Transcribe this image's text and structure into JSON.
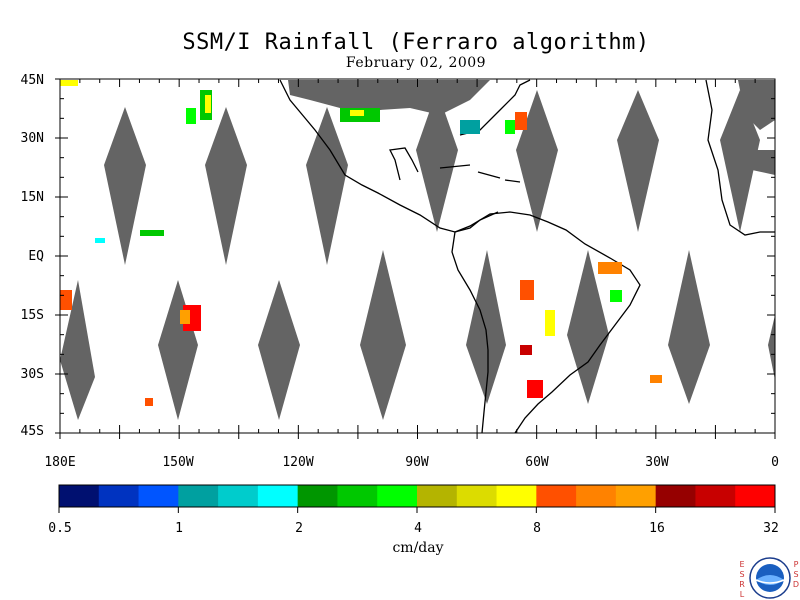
{
  "title": "SSM/I Rainfall (Ferraro algorithm)",
  "date": "February 02, 2009",
  "lat_labels": [
    "45N",
    "30N",
    "15N",
    "EQ",
    "15S",
    "30S",
    "45S"
  ],
  "lon_labels": [
    "180E",
    "150W",
    "120W",
    "90W",
    "60W",
    "30W",
    "0"
  ],
  "colorbar": {
    "colors": [
      "#001070",
      "#0033c0",
      "#0055ff",
      "#00a0a0",
      "#00cccc",
      "#00ffff",
      "#009600",
      "#00c800",
      "#00ff00",
      "#b4b400",
      "#dcdc00",
      "#ffff00",
      "#ff5000",
      "#ff8200",
      "#ffa000",
      "#960000",
      "#c80000",
      "#ff0000"
    ],
    "tick_labels": [
      "0.5",
      "1",
      "2",
      "4",
      "8",
      "16",
      "32"
    ],
    "units": "cm/day"
  },
  "colors": {
    "gap": "#646464",
    "land_outline": "#000000",
    "background": "#ffffff"
  },
  "logo": {
    "name": "noaa-logo",
    "left_letters": "ESRL",
    "right_letters": "PSD"
  }
}
